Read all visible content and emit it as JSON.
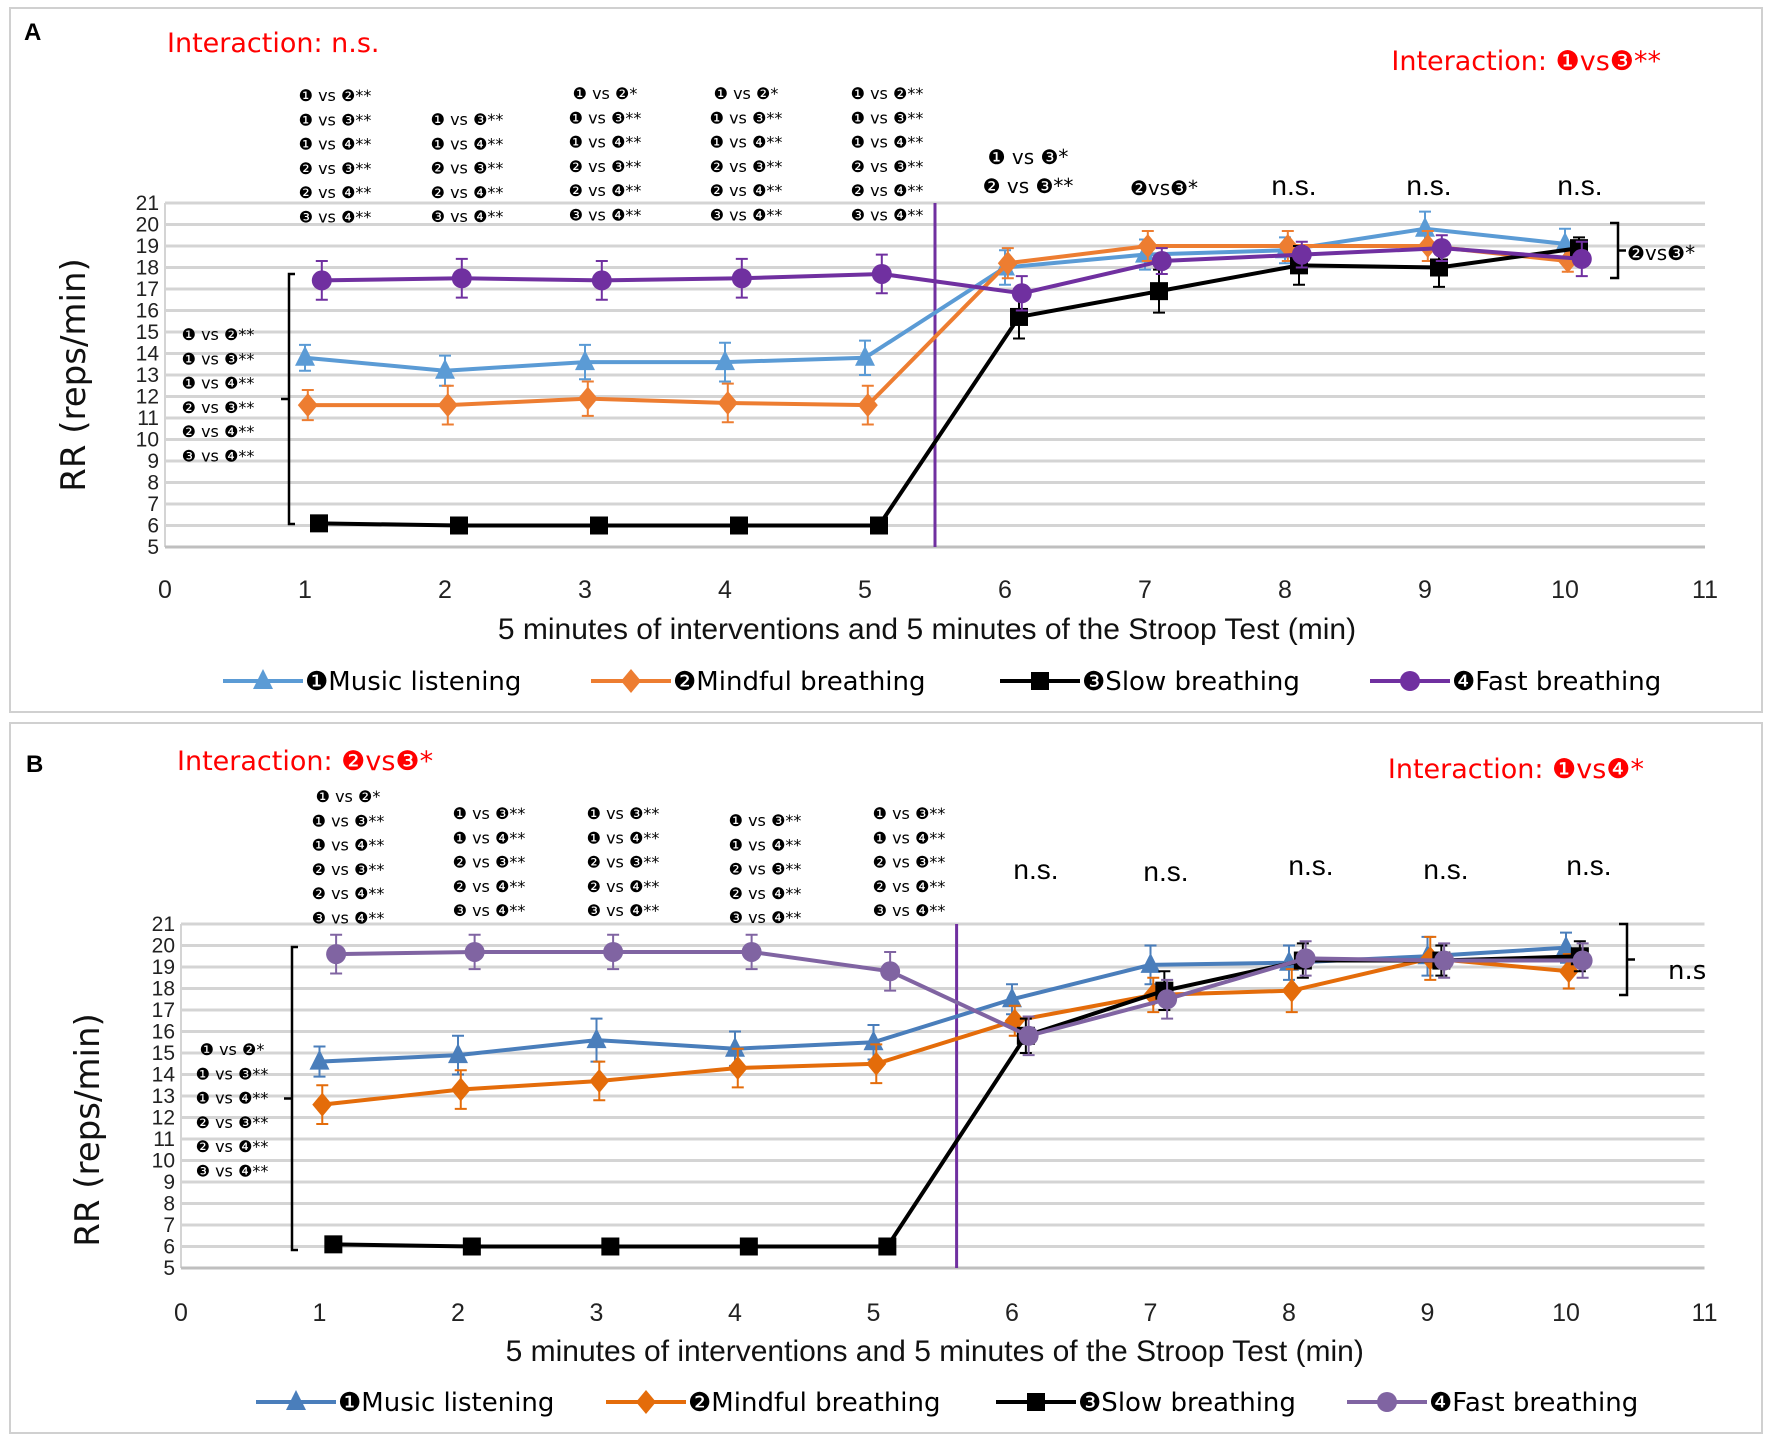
{
  "chart_data": [
    {
      "type": "line",
      "panel_label": "A",
      "xlabel": "5 minutes of interventions and 5 minutes of the Stroop Test (min)",
      "ylabel": "RR (reps/min)",
      "xlim": [
        0,
        11
      ],
      "ylim": [
        5,
        21
      ],
      "x_ticks": [
        "0",
        "1",
        "2",
        "3",
        "4",
        "5",
        "6",
        "7",
        "8",
        "9",
        "10",
        "11"
      ],
      "y_ticks": [
        "5",
        "6",
        "7",
        "8",
        "9",
        "10",
        "11",
        "12",
        "13",
        "14",
        "15",
        "16",
        "17",
        "18",
        "19",
        "20",
        "21"
      ],
      "grid": true,
      "legend_position": "bottom",
      "divider_x": 5.5,
      "x": [
        1,
        2,
        3,
        4,
        5,
        6,
        7,
        8,
        9,
        10
      ],
      "interaction_left": "Interaction: n.s.",
      "interaction_right": "Interaction: ❶vs❸**",
      "series": [
        {
          "name": "❶Music listening",
          "color": "#5B9BD5",
          "marker": "triangle",
          "values": [
            13.8,
            13.2,
            13.6,
            13.6,
            13.8,
            18.0,
            18.6,
            18.8,
            19.8,
            19.1
          ],
          "errors": [
            0.6,
            0.7,
            0.8,
            0.9,
            0.8,
            0.8,
            0.7,
            0.6,
            0.8,
            0.7
          ]
        },
        {
          "name": "❷Mindful breathing",
          "color": "#ED7D31",
          "marker": "diamond",
          "values": [
            11.6,
            11.6,
            11.9,
            11.7,
            11.6,
            18.2,
            19.0,
            19.0,
            19.0,
            18.3
          ],
          "errors": [
            0.7,
            0.9,
            0.8,
            0.9,
            0.9,
            0.7,
            0.7,
            0.7,
            0.7,
            0.5
          ]
        },
        {
          "name": "❸Slow breathing",
          "color": "#000000",
          "marker": "square",
          "values": [
            6.1,
            6.0,
            6.0,
            6.0,
            6.0,
            15.7,
            16.9,
            18.1,
            18.0,
            18.9
          ],
          "errors": [
            0.2,
            0.2,
            0.2,
            0.2,
            0.2,
            1.0,
            1.0,
            0.9,
            0.9,
            0.5
          ]
        },
        {
          "name": "❹Fast breathing",
          "color": "#7030A0",
          "marker": "circle",
          "values": [
            17.4,
            17.5,
            17.4,
            17.5,
            17.7,
            16.8,
            18.3,
            18.6,
            18.9,
            18.4
          ],
          "errors": [
            0.9,
            0.9,
            0.9,
            0.9,
            0.9,
            0.8,
            0.6,
            0.6,
            0.6,
            0.8
          ]
        }
      ],
      "column_annotations": [
        [
          "❶ vs ❷**",
          "❶ vs ❸**",
          "❶ vs ❹**",
          "❷ vs ❸**",
          "❷ vs ❹**",
          "❸ vs ❹**"
        ],
        [
          "❶ vs ❸**",
          "❶ vs ❹**",
          "❷ vs ❸**",
          "❷ vs ❹**",
          "❸ vs ❹**"
        ],
        [
          "❶ vs ❷*",
          "❶ vs ❸**",
          "❶ vs ❹**",
          "❷ vs ❸**",
          "❷ vs ❹**",
          "❸ vs ❹**"
        ],
        [
          "❶ vs ❷*",
          "❶ vs ❸**",
          "❶ vs ❹**",
          "❷ vs ❸**",
          "❷ vs ❹**",
          "❸ vs ❹**"
        ],
        [
          "❶ vs ❷**",
          "❶ vs ❸**",
          "❶ vs ❹**",
          "❷ vs ❸**",
          "❷ vs ❹**",
          "❸ vs ❹**"
        ]
      ],
      "post_annotations": [
        [
          "❶ vs ❸*",
          "❷ vs ❸**"
        ],
        [
          "❷vs❸*"
        ],
        [
          "n.s."
        ],
        [
          "n.s."
        ],
        [
          "n.s."
        ]
      ],
      "left_bracket_annotations": [
        "❶ vs ❷**",
        "❶ vs ❸**",
        "❶ vs ❹**",
        "❷ vs ❸**",
        "❷ vs ❹**",
        "❸ vs ❹**"
      ],
      "right_bracket_annotation": "❷vs❸*"
    },
    {
      "type": "line",
      "panel_label": "B",
      "xlabel": "5 minutes of interventions and 5 minutes of the Stroop Test (min)",
      "ylabel": "RR (reps/min)",
      "xlim": [
        0,
        11
      ],
      "ylim": [
        5,
        21
      ],
      "x_ticks": [
        "0",
        "1",
        "2",
        "3",
        "4",
        "5",
        "6",
        "7",
        "8",
        "9",
        "10",
        "11"
      ],
      "y_ticks": [
        "5",
        "6",
        "7",
        "8",
        "9",
        "10",
        "11",
        "12",
        "13",
        "14",
        "15",
        "16",
        "17",
        "18",
        "19",
        "20",
        "21"
      ],
      "grid": true,
      "legend_position": "bottom",
      "divider_x": 5.6,
      "x": [
        1,
        2,
        3,
        4,
        5,
        6,
        7,
        8,
        9,
        10
      ],
      "interaction_left": "Interaction: ❷vs❸*",
      "interaction_right": "Interaction: ❶vs❹*",
      "series": [
        {
          "name": "❶Music listening",
          "color": "#4A7EBB",
          "marker": "triangle",
          "values": [
            14.6,
            14.9,
            15.6,
            15.2,
            15.5,
            17.5,
            19.1,
            19.2,
            19.5,
            19.9
          ],
          "errors": [
            0.7,
            0.9,
            1.0,
            0.8,
            0.8,
            0.7,
            0.9,
            0.8,
            0.9,
            0.7
          ]
        },
        {
          "name": "❷Mindful breathing",
          "color": "#E46C0A",
          "marker": "diamond",
          "values": [
            12.6,
            13.3,
            13.7,
            14.3,
            14.5,
            16.5,
            17.7,
            17.9,
            19.4,
            18.8
          ],
          "errors": [
            0.9,
            0.9,
            0.9,
            0.9,
            0.9,
            0.7,
            0.8,
            1.0,
            1.0,
            0.8
          ]
        },
        {
          "name": "❸Slow breathing",
          "color": "#000000",
          "marker": "square",
          "values": [
            6.1,
            6.0,
            6.0,
            6.0,
            6.0,
            15.8,
            17.9,
            19.3,
            19.3,
            19.5
          ],
          "errors": [
            0.2,
            0.2,
            0.2,
            0.2,
            0.2,
            0.8,
            0.9,
            0.8,
            0.7,
            0.7
          ]
        },
        {
          "name": "❹Fast breathing",
          "color": "#8064A2",
          "marker": "circle",
          "values": [
            19.6,
            19.7,
            19.7,
            19.7,
            18.8,
            15.8,
            17.5,
            19.4,
            19.3,
            19.3
          ],
          "errors": [
            0.9,
            0.8,
            0.8,
            0.8,
            0.9,
            0.9,
            0.9,
            0.8,
            0.8,
            0.8
          ]
        }
      ],
      "column_annotations": [
        [
          "❶ vs ❷*",
          "❶ vs ❸**",
          "❶ vs ❹**",
          "❷ vs ❸**",
          "❷ vs ❹**",
          "❸ vs ❹**"
        ],
        [
          "❶ vs ❸**",
          "❶ vs ❹**",
          "❷ vs ❸**",
          "❷ vs ❹**",
          "❸ vs ❹**"
        ],
        [
          "❶ vs ❸**",
          "❶ vs ❹**",
          "❷ vs ❸**",
          "❷ vs ❹**",
          "❸ vs ❹**"
        ],
        [
          "❶ vs ❸**",
          "❶ vs ❹**",
          "❷ vs ❸**",
          "❷ vs ❹**",
          "❸ vs ❹**"
        ],
        [
          "❶ vs ❸**",
          "❶ vs ❹**",
          "❷ vs ❸**",
          "❷ vs ❹**",
          "❸ vs ❹**"
        ]
      ],
      "post_annotations": [
        [
          "n.s."
        ],
        [
          "n.s."
        ],
        [
          "n.s."
        ],
        [
          "n.s."
        ],
        [
          "n.s."
        ]
      ],
      "left_bracket_annotations": [
        "❶ vs ❷*",
        "❶ vs ❸**",
        "❶ vs ❹**",
        "❷ vs ❸**",
        "❷ vs ❹**",
        "❸ vs ❹**"
      ],
      "right_bracket_annotation": "n.s"
    }
  ]
}
